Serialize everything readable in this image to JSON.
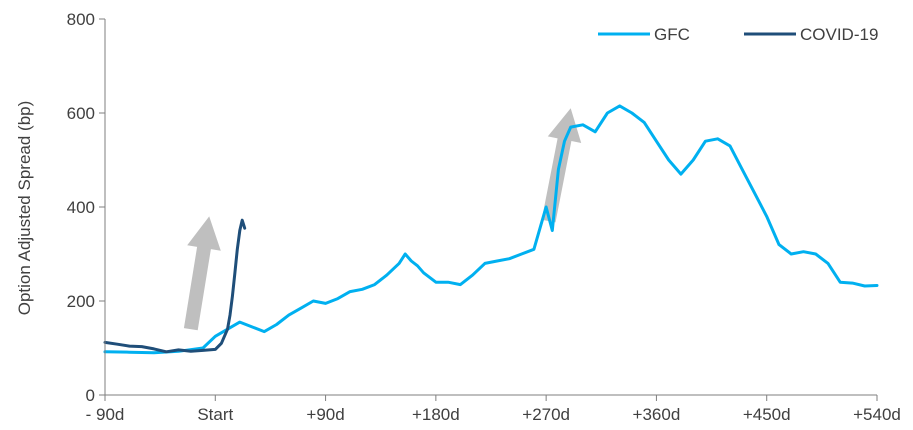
{
  "chart_data": {
    "type": "line",
    "title": "",
    "xlabel": "",
    "ylabel": "Option Adjusted Spread (bp)",
    "x_tick_labels": [
      "- 90d",
      "Start",
      "+90d",
      "+180d",
      "+270d",
      "+360d",
      "+450d",
      "+540d"
    ],
    "x_tick_values": [
      -90,
      0,
      90,
      180,
      270,
      360,
      450,
      540
    ],
    "xlim": [
      -90,
      540
    ],
    "ylim": [
      0,
      800
    ],
    "y_ticks": [
      0,
      200,
      400,
      600,
      800
    ],
    "grid": false,
    "legend_position": "top-right",
    "series": [
      {
        "name": "GFC",
        "color": "#00b0f0",
        "x": [
          -90,
          -70,
          -50,
          -30,
          -10,
          0,
          10,
          20,
          30,
          40,
          50,
          60,
          70,
          80,
          90,
          100,
          110,
          120,
          130,
          140,
          150,
          155,
          160,
          165,
          170,
          180,
          190,
          200,
          210,
          220,
          230,
          240,
          250,
          260,
          270,
          275,
          280,
          285,
          290,
          300,
          310,
          320,
          330,
          340,
          345,
          350,
          360,
          370,
          380,
          390,
          400,
          410,
          420,
          430,
          440,
          450,
          460,
          470,
          480,
          490,
          500,
          510,
          520,
          530,
          540
        ],
        "values": [
          92,
          91,
          90,
          93,
          100,
          125,
          140,
          155,
          145,
          135,
          150,
          170,
          185,
          200,
          195,
          205,
          220,
          225,
          235,
          255,
          280,
          300,
          285,
          275,
          260,
          240,
          240,
          235,
          255,
          280,
          285,
          290,
          300,
          310,
          400,
          350,
          480,
          540,
          570,
          575,
          560,
          600,
          615,
          600,
          590,
          580,
          540,
          500,
          470,
          500,
          540,
          545,
          530,
          480,
          430,
          380,
          320,
          300,
          305,
          300,
          280,
          240,
          238,
          232,
          233
        ]
      },
      {
        "name": "COVID-19",
        "color": "#1f4e79",
        "x": [
          -90,
          -80,
          -70,
          -60,
          -50,
          -40,
          -30,
          -20,
          -10,
          0,
          5,
          10,
          12,
          14,
          16,
          18,
          20,
          22,
          24
        ],
        "values": [
          112,
          108,
          104,
          103,
          98,
          92,
          96,
          93,
          95,
          97,
          110,
          140,
          170,
          210,
          260,
          310,
          350,
          372,
          355
        ]
      }
    ],
    "annotations": [
      {
        "type": "arrow",
        "color": "#bfbfbf",
        "from": [
          -20,
          140
        ],
        "to": [
          -5,
          380
        ]
      },
      {
        "type": "arrow",
        "color": "#bfbfbf",
        "from": [
          272,
          370
        ],
        "to": [
          290,
          610
        ]
      }
    ]
  }
}
